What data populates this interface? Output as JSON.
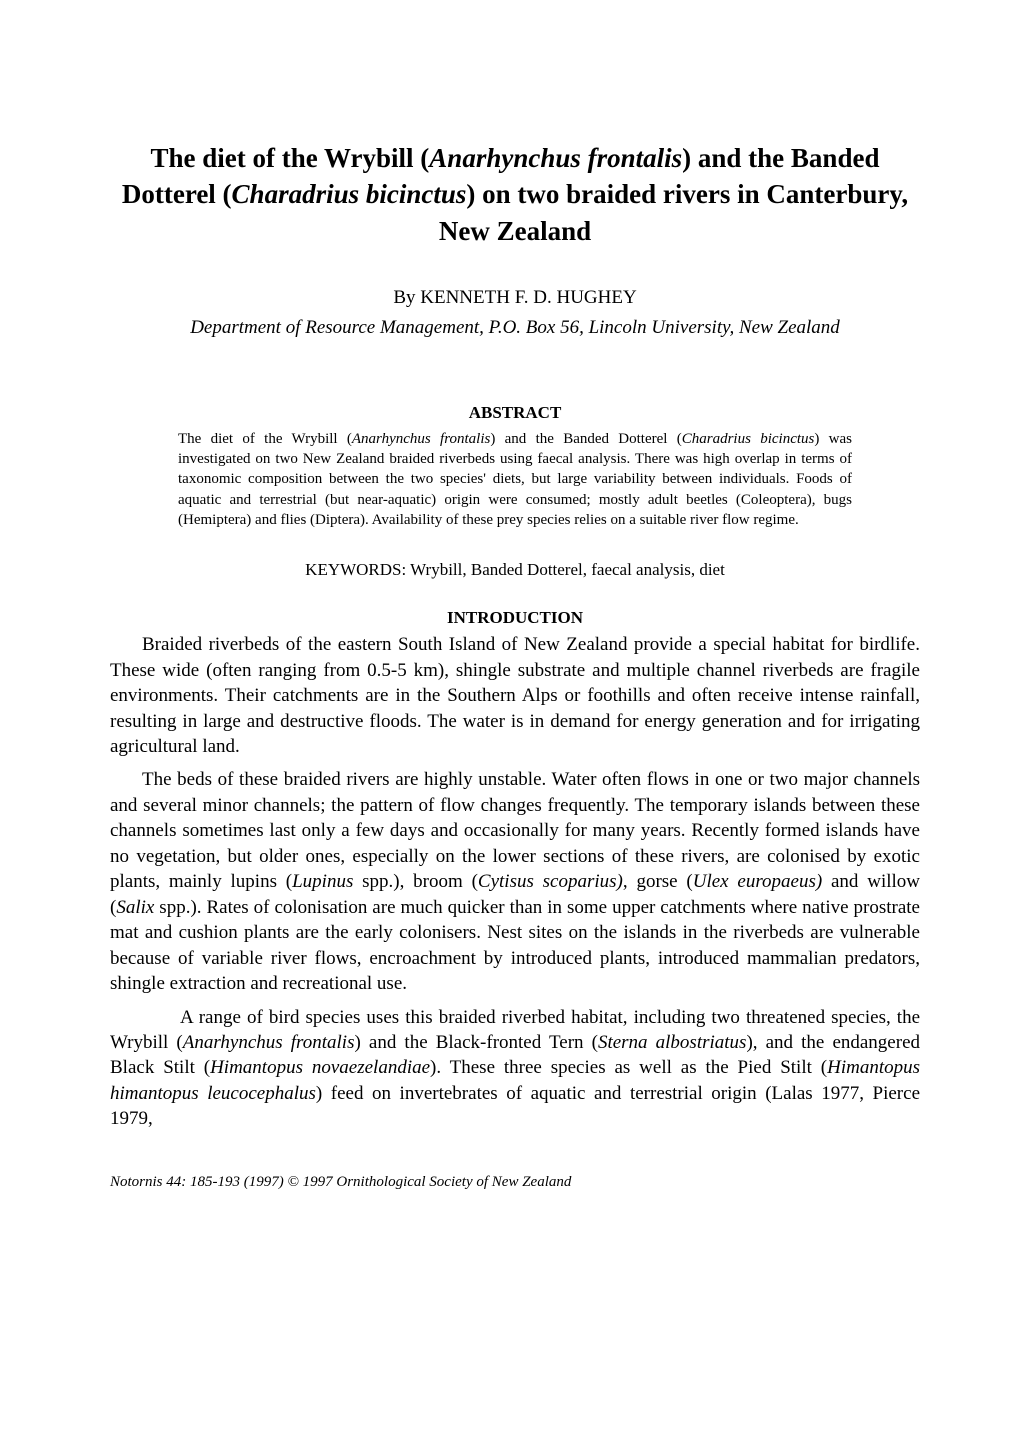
{
  "title": {
    "line1_prefix": "The diet of the Wrybill (",
    "line1_species": "Anarhynchus frontalis",
    "line1_suffix": ") and the",
    "line2_prefix": "Banded Dotterel (",
    "line2_species": "Charadrius bicinctus",
    "line2_suffix": ") on two braided",
    "line3": "rivers in Canterbury, New Zealand"
  },
  "author": {
    "by": "By ",
    "name": "KENNETH F. D. HUGHEY"
  },
  "affiliation": "Department of Resource Management, P.O. Box 56, Lincoln University, New Zealand",
  "abstract_heading": "ABSTRACT",
  "abstract": {
    "t1": "The diet of the Wrybill (",
    "s1": "Anarhynchus frontalis",
    "t2": ") and the Banded Dotterel (",
    "s2": "Charadrius bicinctus",
    "t3": ") was investigated on two New Zealand braided riverbeds using faecal analysis. There was high overlap in terms of taxonomic composition between the two species' diets, but large variability between individuals. Foods of aquatic and terrestrial (but near-aquatic) origin were consumed; mostly adult beetles (Coleoptera), bugs (Hemiptera) and flies (Diptera). Availability of these prey species relies on a suitable river flow regime."
  },
  "keywords": "KEYWORDS:  Wrybill, Banded Dotterel, faecal analysis, diet",
  "intro_heading": "INTRODUCTION",
  "para1": "Braided riverbeds of the eastern South Island of New Zealand provide a special habitat for birdlife. These wide (often ranging from 0.5-5 km), shingle substrate and multiple channel riverbeds are fragile environments. Their catchments are in the Southern Alps or foothills and often receive intense rainfall, resulting in large and destructive floods. The water is in demand for energy generation and for irrigating agricultural land.",
  "para2": {
    "t1": "The beds of these braided rivers are highly unstable. Water often flows in one or two major channels and several minor channels; the pattern of flow changes frequently. The temporary islands between these channels sometimes last only a few days and occasionally for many years. Recently formed islands have no vegetation, but older ones, especially on the lower sections of these rivers, are colonised by exotic plants, mainly lupins (",
    "s1": "Lupinus",
    "t2": " spp.), broom (",
    "s2": "Cytisus scoparius)",
    "t3": ", gorse (",
    "s3": "Ulex europaeus)",
    "t4": " and willow (",
    "s4": "Salix",
    "t5": " spp.). Rates of colonisation are much quicker than in some upper catchments where native prostrate mat and cushion plants are the early colonisers. Nest sites on the islands in the riverbeds are vulnerable because of variable river flows, encroachment by introduced plants, introduced mammalian predators, shingle extraction and recreational use."
  },
  "para3": {
    "t1": "A range of bird species uses this braided riverbed habitat, including two threatened species, the Wrybill (",
    "s1": "Anarhynchus frontalis",
    "t2": ") and the Black-fronted Tern (",
    "s2": "Sterna albostriatus",
    "t3": "), and the endangered Black Stilt (",
    "s3": "Himantopus novaezelandiae",
    "t4": "). These three species as well as the Pied Stilt (",
    "s4": "Himantopus himantopus leucocephalus",
    "t5": ") feed on invertebrates of aquatic and terrestrial origin (Lalas 1977, Pierce 1979,"
  },
  "footer": "Notornis 44: 185-193 (1997) © 1997 Ornithological Society of New Zealand"
}
